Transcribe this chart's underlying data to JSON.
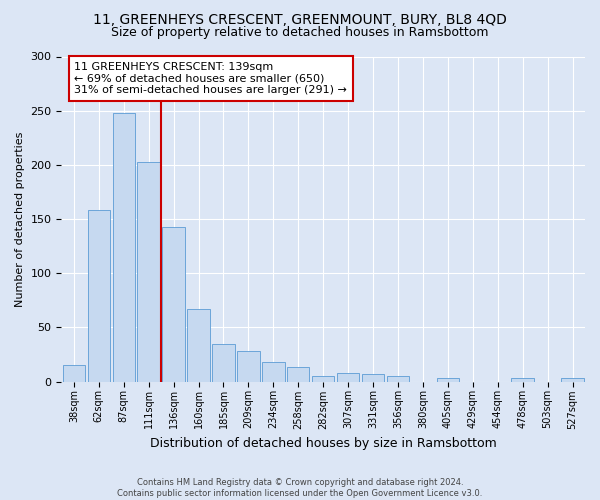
{
  "title1": "11, GREENHEYS CRESCENT, GREENMOUNT, BURY, BL8 4QD",
  "title2": "Size of property relative to detached houses in Ramsbottom",
  "xlabel": "Distribution of detached houses by size in Ramsbottom",
  "ylabel": "Number of detached properties",
  "categories": [
    "38sqm",
    "62sqm",
    "87sqm",
    "111sqm",
    "136sqm",
    "160sqm",
    "185sqm",
    "209sqm",
    "234sqm",
    "258sqm",
    "282sqm",
    "307sqm",
    "331sqm",
    "356sqm",
    "380sqm",
    "405sqm",
    "429sqm",
    "454sqm",
    "478sqm",
    "503sqm",
    "527sqm"
  ],
  "values": [
    15,
    158,
    248,
    203,
    143,
    67,
    35,
    28,
    18,
    13,
    5,
    8,
    7,
    5,
    0,
    3,
    0,
    0,
    3,
    0,
    3
  ],
  "bar_color": "#c6d9f0",
  "bar_edge_color": "#5b9bd5",
  "vline_index": 4,
  "vline_color": "#cc0000",
  "annotation_text": "11 GREENHEYS CRESCENT: 139sqm\n← 69% of detached houses are smaller (650)\n31% of semi-detached houses are larger (291) →",
  "annotation_box_color": "#ffffff",
  "annotation_box_edge": "#cc0000",
  "ylim": [
    0,
    300
  ],
  "footer": "Contains HM Land Registry data © Crown copyright and database right 2024.\nContains public sector information licensed under the Open Government Licence v3.0.",
  "bg_color": "#dce6f5",
  "plot_bg_color": "#dce6f5",
  "grid_color": "#ffffff",
  "title1_fontsize": 10,
  "title2_fontsize": 9,
  "annotation_fontsize": 8,
  "xlabel_fontsize": 9,
  "ylabel_fontsize": 8
}
